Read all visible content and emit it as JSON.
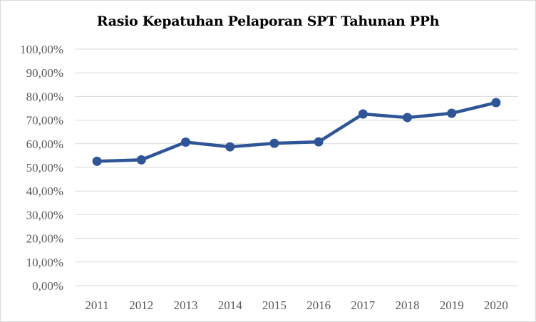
{
  "chart_data": {
    "type": "line",
    "title": "Rasio Kepatuhan Pelaporan SPT Tahunan PPh",
    "xlabel": "",
    "ylabel": "",
    "categories": [
      "2011",
      "2012",
      "2013",
      "2014",
      "2015",
      "2016",
      "2017",
      "2018",
      "2019",
      "2020"
    ],
    "series": [
      {
        "values": [
          52.6,
          53.2,
          60.7,
          58.7,
          60.2,
          60.8,
          72.6,
          71.1,
          72.9,
          77.4
        ],
        "color": "#2f5597"
      }
    ],
    "ylim": [
      0,
      100
    ],
    "y_ticks": [
      "0,00%",
      "10,00%",
      "20,00%",
      "30,00%",
      "40,00%",
      "50,00%",
      "60,00%",
      "70,00%",
      "80,00%",
      "90,00%",
      "100,00%"
    ],
    "grid": true,
    "legend": "none",
    "colors": {
      "gridline": "#d9d9d9",
      "axis_text": "#595959"
    }
  }
}
